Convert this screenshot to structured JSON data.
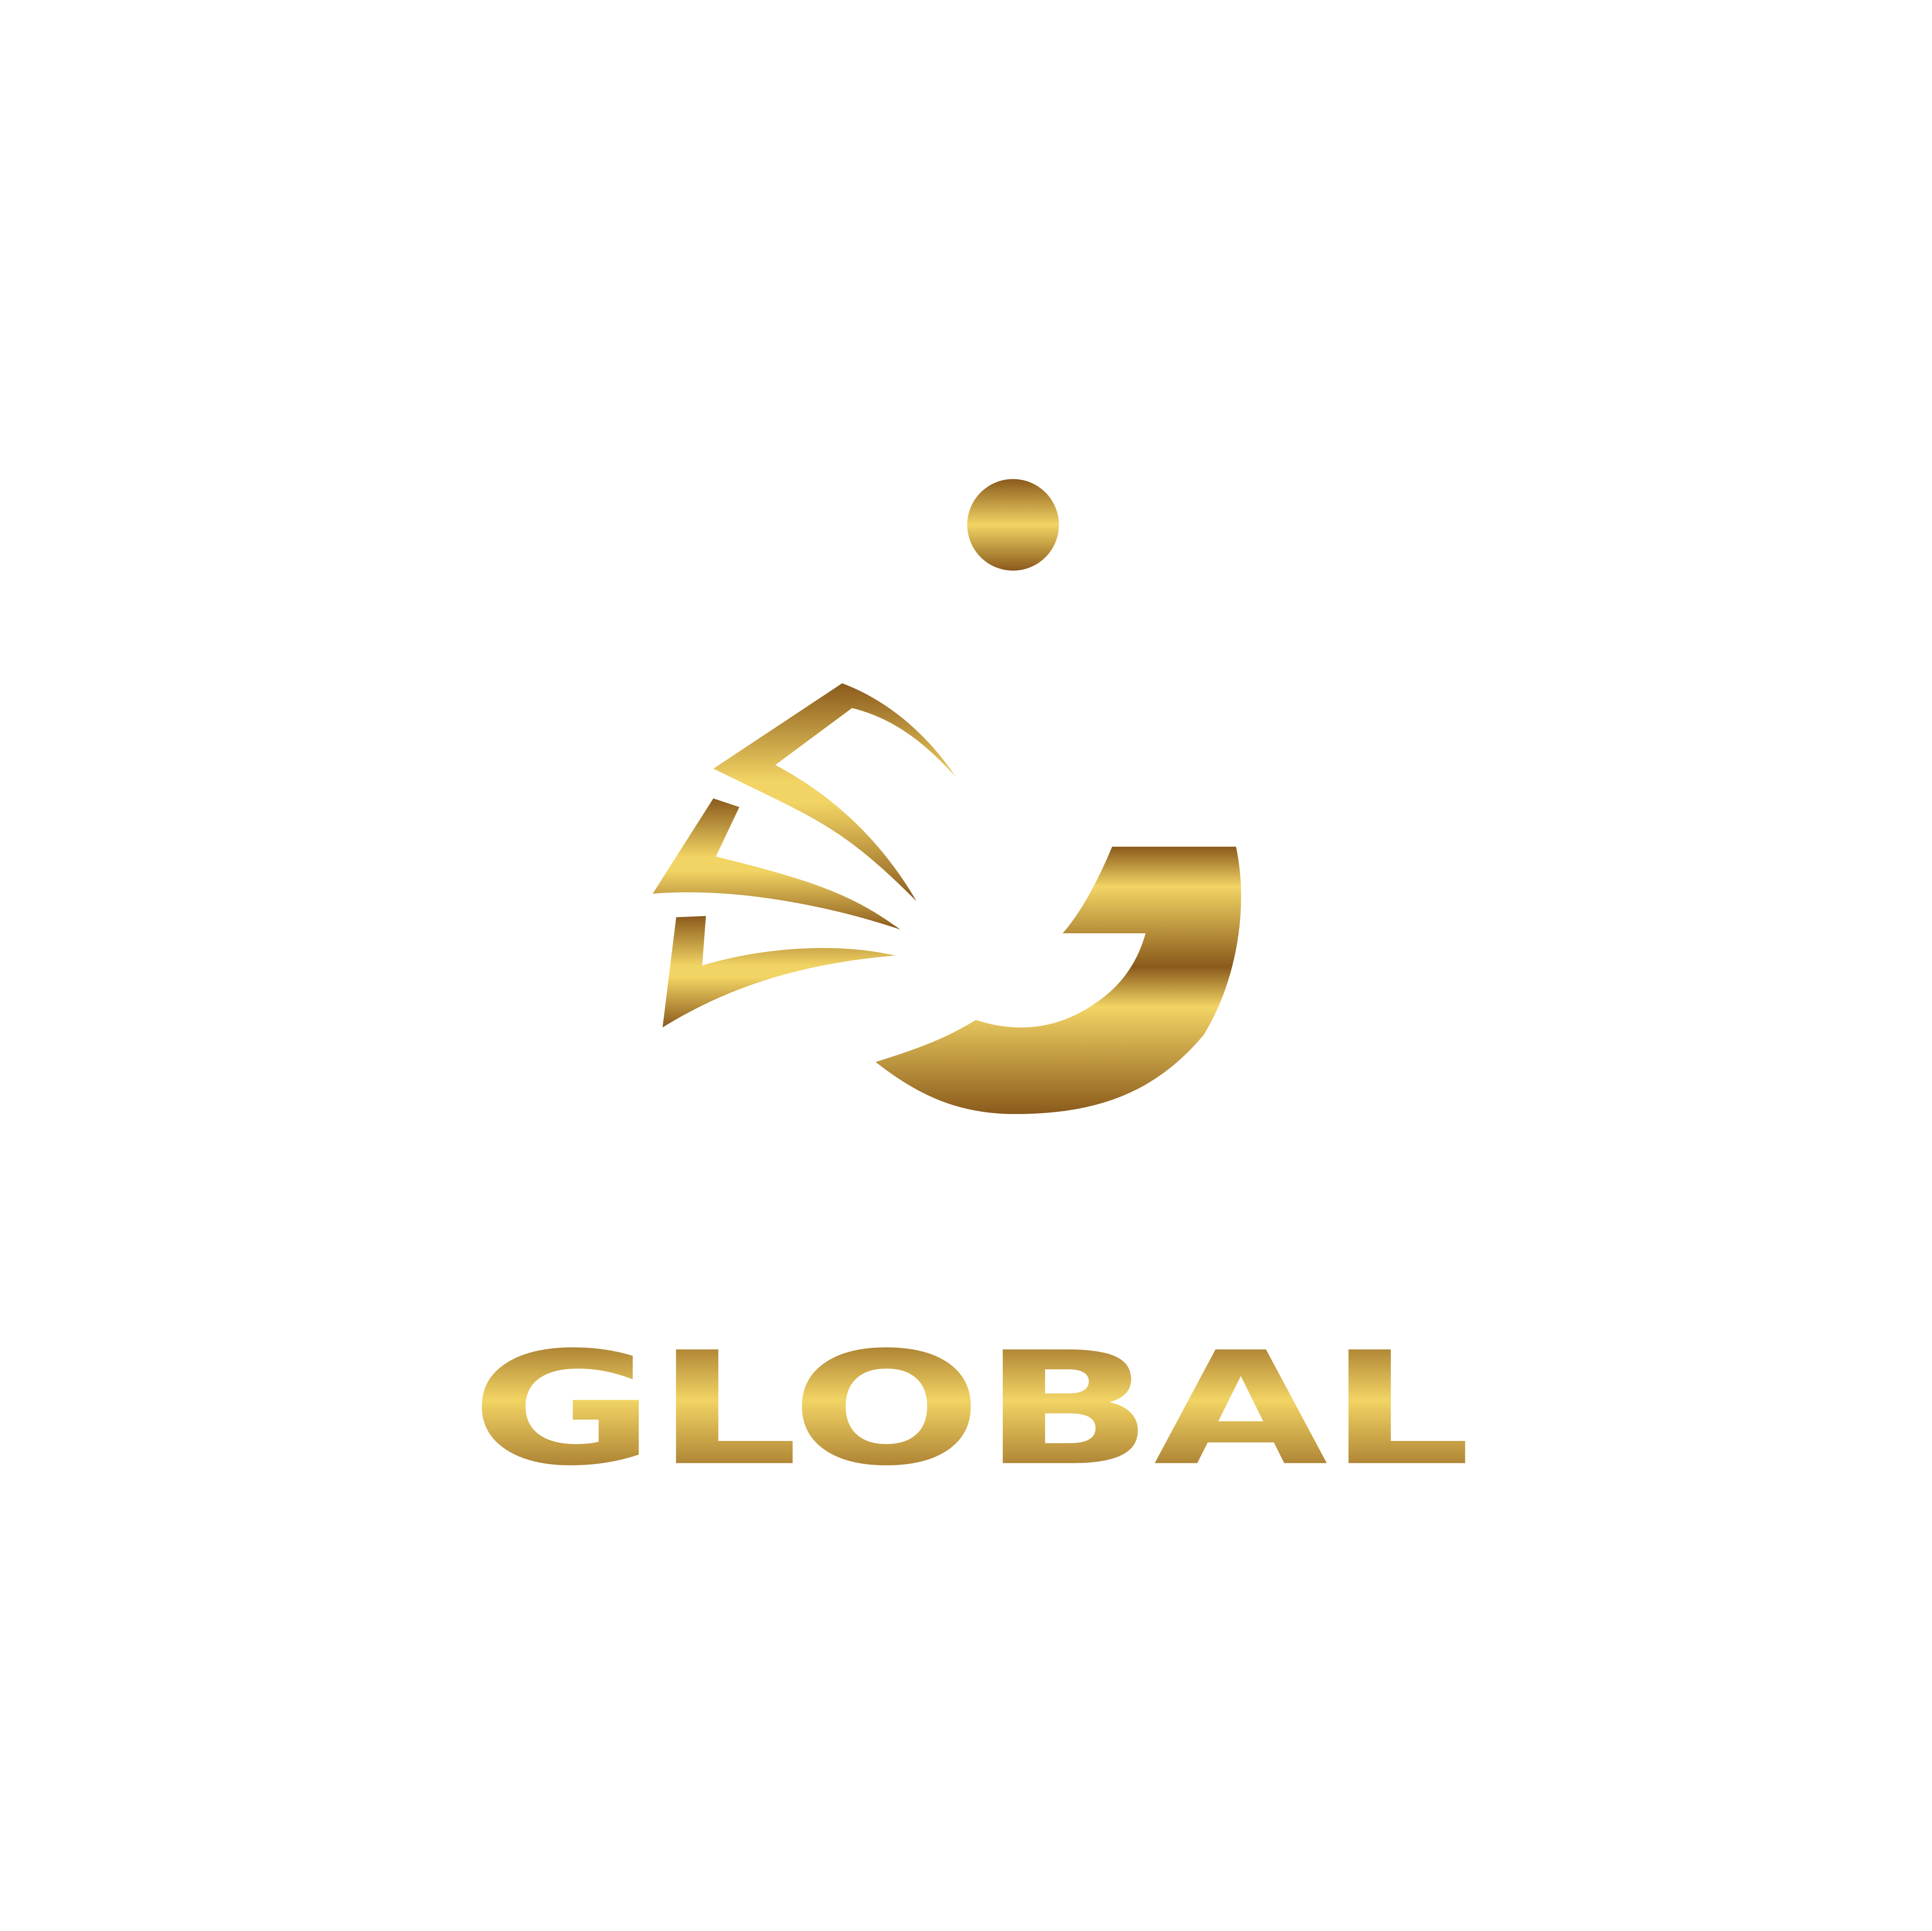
{
  "brand": {
    "wordmark": "GLOBAL"
  },
  "colors": {
    "background": "#ffffff",
    "gold_dark": "#8a5a1c",
    "gold_light": "#f2d464",
    "gold_mid": "#c9a240"
  },
  "icons": {
    "emblem": "wing-hook-dot-emblem"
  }
}
